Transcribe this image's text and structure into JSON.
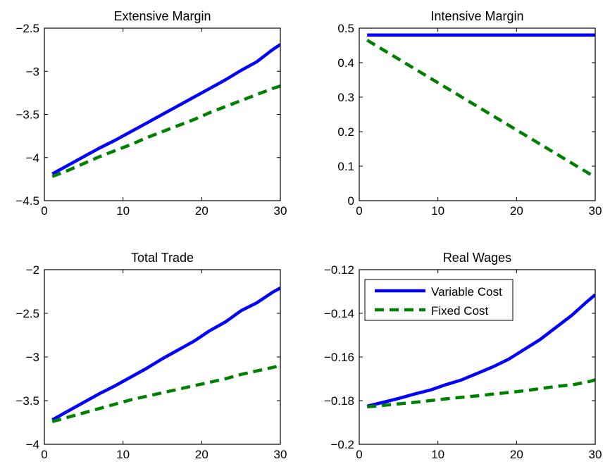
{
  "figure": {
    "legend": {
      "entries": [
        {
          "label": "Variable Cost",
          "color": "#0000ff",
          "dash": "solid"
        },
        {
          "label": "Fixed Cost",
          "color": "#008000",
          "dash": "dashed"
        }
      ],
      "placement": "top-left of Real Wages panel"
    }
  },
  "chart_data": [
    {
      "type": "line",
      "title": "Extensive Margin",
      "xlabel": "",
      "ylabel": "",
      "xlim": [
        0,
        30
      ],
      "ylim": [
        -4.5,
        -2.5
      ],
      "xticks": [
        "0",
        "10",
        "20",
        "30"
      ],
      "yticks": [
        "−2.5",
        "−3",
        "−3.5",
        "−4",
        "−4.5"
      ],
      "ytick_values": [
        -2.5,
        -3,
        -3.5,
        -4,
        -4.5
      ],
      "xtick_values": [
        0,
        10,
        20,
        30
      ],
      "x": [
        1,
        3,
        5,
        7,
        9,
        11,
        13,
        15,
        17,
        19,
        21,
        23,
        25,
        27,
        29,
        30
      ],
      "series": [
        {
          "name": "Variable Cost",
          "color": "#0000ff",
          "dash": "solid",
          "values": [
            -4.19,
            -4.09,
            -3.99,
            -3.89,
            -3.8,
            -3.7,
            -3.6,
            -3.5,
            -3.4,
            -3.3,
            -3.2,
            -3.1,
            -2.99,
            -2.89,
            -2.75,
            -2.69
          ]
        },
        {
          "name": "Fixed Cost",
          "color": "#008000",
          "dash": "dashed",
          "values": [
            -4.22,
            -4.15,
            -4.07,
            -3.99,
            -3.92,
            -3.85,
            -3.77,
            -3.7,
            -3.63,
            -3.56,
            -3.48,
            -3.41,
            -3.34,
            -3.27,
            -3.2,
            -3.17
          ]
        }
      ]
    },
    {
      "type": "line",
      "title": "Intensive Margin",
      "xlabel": "",
      "ylabel": "",
      "xlim": [
        0,
        30
      ],
      "ylim": [
        0,
        0.5
      ],
      "xticks": [
        "0",
        "10",
        "20",
        "30"
      ],
      "yticks": [
        "0.5",
        "0.4",
        "0.3",
        "0.2",
        "0.1",
        "0"
      ],
      "ytick_values": [
        0.5,
        0.4,
        0.3,
        0.2,
        0.1,
        0
      ],
      "xtick_values": [
        0,
        10,
        20,
        30
      ],
      "x": [
        1,
        30
      ],
      "series": [
        {
          "name": "Variable Cost",
          "color": "#0000ff",
          "dash": "solid",
          "values": [
            0.48,
            0.48
          ]
        },
        {
          "name": "Fixed Cost",
          "color": "#008000",
          "dash": "dashed",
          "values": [
            0.465,
            0.068
          ]
        }
      ]
    },
    {
      "type": "line",
      "title": "Total Trade",
      "xlabel": "",
      "ylabel": "",
      "xlim": [
        0,
        30
      ],
      "ylim": [
        -4,
        -2
      ],
      "xticks": [
        "0",
        "10",
        "20",
        "30"
      ],
      "yticks": [
        "−2",
        "−2.5",
        "−3",
        "−3.5",
        "−4"
      ],
      "ytick_values": [
        -2,
        -2.5,
        -3,
        -3.5,
        -4
      ],
      "xtick_values": [
        0,
        10,
        20,
        30
      ],
      "x": [
        1,
        3,
        5,
        7,
        9,
        11,
        13,
        15,
        17,
        19,
        21,
        23,
        25,
        27,
        29,
        30
      ],
      "series": [
        {
          "name": "Variable Cost",
          "color": "#0000ff",
          "dash": "solid",
          "values": [
            -3.72,
            -3.62,
            -3.52,
            -3.42,
            -3.33,
            -3.23,
            -3.13,
            -3.02,
            -2.92,
            -2.82,
            -2.7,
            -2.6,
            -2.47,
            -2.38,
            -2.26,
            -2.21
          ]
        },
        {
          "name": "Fixed Cost",
          "color": "#008000",
          "dash": "dashed",
          "values": [
            -3.74,
            -3.69,
            -3.64,
            -3.59,
            -3.54,
            -3.49,
            -3.45,
            -3.41,
            -3.37,
            -3.33,
            -3.29,
            -3.25,
            -3.2,
            -3.16,
            -3.12,
            -3.1
          ]
        }
      ]
    },
    {
      "type": "line",
      "title": "Real Wages",
      "xlabel": "",
      "ylabel": "",
      "xlim": [
        0,
        30
      ],
      "ylim": [
        -0.2,
        -0.12
      ],
      "xticks": [
        "0",
        "10",
        "20",
        "30"
      ],
      "yticks": [
        "−0.12",
        "−0.14",
        "−0.16",
        "−0.18",
        "−0.2"
      ],
      "ytick_values": [
        -0.12,
        -0.14,
        -0.16,
        -0.18,
        -0.2
      ],
      "xtick_values": [
        0,
        10,
        20,
        30
      ],
      "x": [
        1,
        3,
        5,
        7,
        9,
        11,
        13,
        15,
        17,
        19,
        21,
        23,
        25,
        27,
        29,
        30
      ],
      "series": [
        {
          "name": "Variable Cost",
          "color": "#0000ff",
          "dash": "solid",
          "values": [
            -0.1825,
            -0.1808,
            -0.179,
            -0.177,
            -0.1752,
            -0.1727,
            -0.1705,
            -0.1675,
            -0.1645,
            -0.161,
            -0.1565,
            -0.152,
            -0.1465,
            -0.141,
            -0.1345,
            -0.1315
          ]
        },
        {
          "name": "Fixed Cost",
          "color": "#008000",
          "dash": "dashed",
          "values": [
            -0.1828,
            -0.1822,
            -0.1815,
            -0.1808,
            -0.18,
            -0.1792,
            -0.1785,
            -0.1778,
            -0.177,
            -0.1763,
            -0.1755,
            -0.1745,
            -0.1735,
            -0.1728,
            -0.1715,
            -0.1705
          ]
        }
      ]
    }
  ]
}
